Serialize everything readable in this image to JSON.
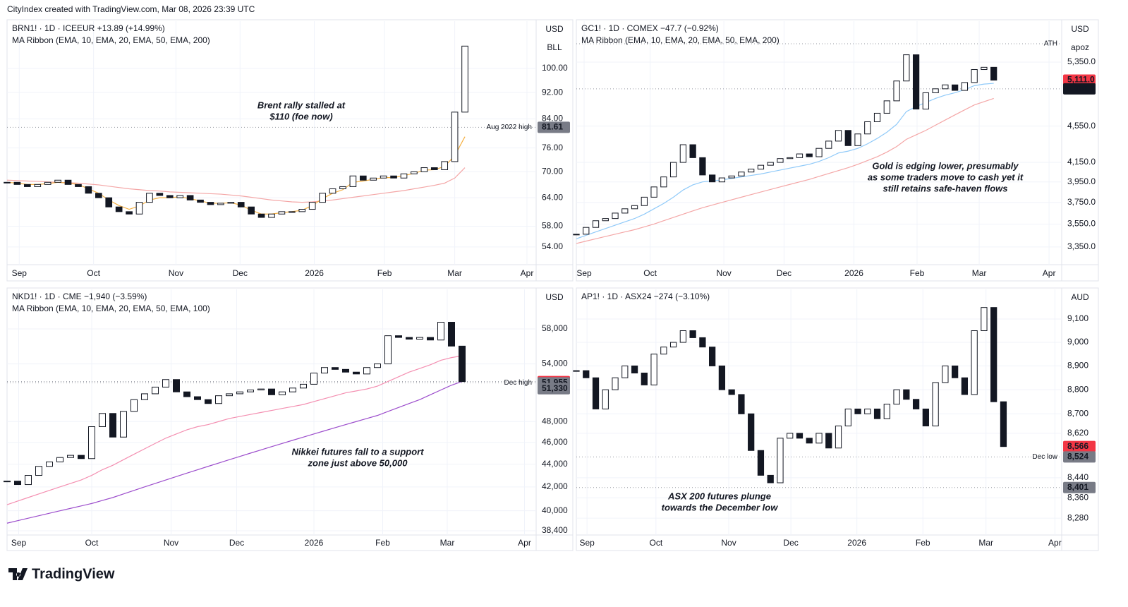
{
  "credit": "CityIndex created with TradingView.com, Mar 08, 2026 23:39 UTC",
  "brand": "TradingView",
  "chart_data": [
    {
      "type": "candlestick",
      "title": "BRN1! · 1D · ICEEUR  +13.89 (+14.99%)",
      "subtitle": "MA Ribbon (EMA, 10, EMA, 20, EMA, 50, EMA, 200)",
      "units": [
        "USD",
        "BLL"
      ],
      "annotation": [
        "Brent rally stalled at",
        "$110 (foe now)"
      ],
      "log_scale": true,
      "grid": true,
      "up_color": "#ffffff",
      "down_color": "#131722",
      "xlim": [
        0,
        52
      ],
      "xticks": [
        {
          "value": 1.2,
          "label": "Sep"
        },
        {
          "value": 8.5,
          "label": "Oct"
        },
        {
          "value": 16.6,
          "label": "Nov"
        },
        {
          "value": 22.9,
          "label": "Dec"
        },
        {
          "value": 30.2,
          "label": "2026"
        },
        {
          "value": 37.1,
          "label": "Feb"
        },
        {
          "value": 44,
          "label": "Mar"
        },
        {
          "value": 51.1,
          "label": "Apr"
        }
      ],
      "ylim": [
        50.8,
        117.7
      ],
      "yticks": [
        {
          "value": 54,
          "label": "54.00"
        },
        {
          "value": 58,
          "label": "58.00"
        },
        {
          "value": 64,
          "label": "64.00"
        },
        {
          "value": 70,
          "label": "70.00"
        },
        {
          "value": 76,
          "label": "76.00"
        },
        {
          "value": 84,
          "label": "84.00"
        },
        {
          "value": 92,
          "label": "92.00"
        },
        {
          "value": 100,
          "label": "100.00"
        }
      ],
      "values": [
        67.5,
        67,
        66.5,
        67,
        67.5,
        68,
        67,
        66.5,
        65,
        64,
        62,
        61,
        60.5,
        63,
        65,
        64.5,
        64,
        64.5,
        63.5,
        63,
        62.5,
        62.8,
        63,
        62,
        60.5,
        59.8,
        60.5,
        61,
        61,
        61.5,
        63,
        65,
        66,
        66.5,
        69,
        68,
        68.5,
        69,
        68.5,
        69.5,
        70,
        71,
        70.5,
        72.5,
        86,
        108
      ],
      "ribbon": [
        {
          "color": "#f4a6a6",
          "values": [
            68,
            67.9,
            67.8,
            67.7,
            67.6,
            67.5,
            67.4,
            67.3,
            67.1,
            66.9,
            66.6,
            66.3,
            66,
            65.8,
            65.6,
            65.5,
            65.3,
            65.2,
            65.1,
            65,
            64.9,
            64.8,
            64.6,
            64.4,
            64.1,
            63.8,
            63.5,
            63.3,
            63.1,
            63,
            63.1,
            63.3,
            63.5,
            63.8,
            64.1,
            64.4,
            64.7,
            65,
            65.3,
            65.6,
            66,
            66.4,
            66.8,
            67.3,
            68.5,
            71
          ]
        },
        {
          "color": "#f5b041",
          "values": [
            67.5,
            67.3,
            67,
            67,
            67.2,
            67.5,
            67.3,
            67,
            66,
            65,
            63.5,
            62.3,
            61.5,
            62.2,
            63.5,
            64,
            64,
            64.2,
            63.8,
            63.3,
            62.8,
            62.8,
            62.9,
            62.4,
            61.3,
            60.5,
            60.5,
            60.8,
            61,
            61.3,
            62.3,
            63.8,
            65,
            65.8,
            67.5,
            67.8,
            68.2,
            68.6,
            68.6,
            69.1,
            69.6,
            70.4,
            70.5,
            71.3,
            74,
            79
          ]
        }
      ],
      "levels": [
        {
          "value": 81.61,
          "label": "Aug 2022 high"
        }
      ],
      "price_labels": [
        {
          "value": 81.61,
          "label": "81.61",
          "color": "#787b86"
        }
      ]
    },
    {
      "type": "candlestick",
      "title": "GC1! · 1D · COMEX  −47.7 (−0.92%)",
      "subtitle": "MA Ribbon (EMA, 10, EMA, 20, EMA, 50, EMA, 200)",
      "units": [
        "USD",
        "apoz"
      ],
      "annotation": [
        "Gold is edging lower, presumably",
        "as some traders move to cash yet it",
        "still retains safe-haven flows"
      ],
      "log_scale": true,
      "grid": true,
      "up_color": "#ffffff",
      "down_color": "#131722",
      "xlim": [
        0,
        50
      ],
      "xticks": [
        {
          "value": 0.8,
          "label": "Sep"
        },
        {
          "value": 7.6,
          "label": "Oct"
        },
        {
          "value": 15.2,
          "label": "Nov"
        },
        {
          "value": 21.4,
          "label": "Dec"
        },
        {
          "value": 28.6,
          "label": "2026"
        },
        {
          "value": 35.1,
          "label": "Feb"
        },
        {
          "value": 41.5,
          "label": "Mar"
        },
        {
          "value": 48.7,
          "label": "Apr"
        }
      ],
      "ylim": [
        3203,
        5934
      ],
      "yticks": [
        {
          "value": 3350,
          "label": "3,350.0"
        },
        {
          "value": 3550,
          "label": "3,550.0"
        },
        {
          "value": 3750,
          "label": "3,750.0"
        },
        {
          "value": 3950,
          "label": "3,950.0"
        },
        {
          "value": 4150,
          "label": "4,150.0"
        },
        {
          "value": 4550,
          "label": "4,550.0"
        },
        {
          "value": 5350,
          "label": "5,350.0"
        }
      ],
      "values": [
        3460,
        3520,
        3580,
        3600,
        3650,
        3690,
        3720,
        3800,
        3900,
        4000,
        4150,
        4340,
        4200,
        4020,
        3950,
        3990,
        4010,
        4050,
        4080,
        4120,
        4150,
        4190,
        4200,
        4240,
        4210,
        4300,
        4380,
        4500,
        4330,
        4460,
        4600,
        4700,
        4850,
        5100,
        5450,
        4750,
        4950,
        5000,
        5050,
        4980,
        5080,
        5250,
        5280,
        5111
      ],
      "ribbon": [
        {
          "color": "#f4a6a6",
          "values": [
            3380,
            3400,
            3420,
            3440,
            3460,
            3480,
            3500,
            3525,
            3550,
            3580,
            3610,
            3640,
            3670,
            3700,
            3725,
            3750,
            3775,
            3800,
            3825,
            3850,
            3875,
            3900,
            3925,
            3950,
            3975,
            4005,
            4035,
            4065,
            4095,
            4130,
            4170,
            4210,
            4260,
            4320,
            4400,
            4450,
            4500,
            4560,
            4620,
            4680,
            4740,
            4800,
            4840,
            4880
          ]
        },
        {
          "color": "#90caf9",
          "values": [
            3420,
            3450,
            3480,
            3510,
            3540,
            3570,
            3600,
            3640,
            3690,
            3740,
            3800,
            3870,
            3920,
            3950,
            3960,
            3970,
            3985,
            4000,
            4015,
            4030,
            4050,
            4070,
            4090,
            4110,
            4130,
            4160,
            4200,
            4250,
            4270,
            4300,
            4350,
            4410,
            4480,
            4570,
            4720,
            4780,
            4830,
            4880,
            4920,
            4950,
            4990,
            5040,
            5060,
            5070
          ]
        }
      ],
      "levels": [
        {
          "value": 5604,
          "label": "ATH"
        },
        {
          "value": 5000
        }
      ],
      "price_labels": [
        {
          "value": 5111,
          "label": "5,111.0",
          "color": "#f23645"
        },
        {
          "value": 5000,
          "label": "5,000.0",
          "color": "#131722"
        }
      ]
    },
    {
      "type": "candlestick",
      "title": "NKD1! · 1D · CME  −1,940 (−3.59%)",
      "subtitle": "MA Ribbon (EMA, 10, EMA, 20, EMA, 50, EMA, 100)",
      "units": [
        "USD"
      ],
      "annotation": [
        "Nikkei futures fall to a support",
        "zone just above 50,000"
      ],
      "log_scale": true,
      "grid": true,
      "up_color": "#ffffff",
      "down_color": "#131722",
      "xlim": [
        0,
        50
      ],
      "xticks": [
        {
          "value": 1.1,
          "label": "Sep"
        },
        {
          "value": 8,
          "label": "Oct"
        },
        {
          "value": 15.5,
          "label": "Nov"
        },
        {
          "value": 21.7,
          "label": "Dec"
        },
        {
          "value": 29,
          "label": "2026"
        },
        {
          "value": 35.5,
          "label": "Feb"
        },
        {
          "value": 41.6,
          "label": "Mar"
        },
        {
          "value": 48.9,
          "label": "Apr"
        }
      ],
      "ylim": [
        38069,
        62879
      ],
      "yticks": [
        {
          "value": 38400,
          "label": "38,400"
        },
        {
          "value": 40000,
          "label": "40,000"
        },
        {
          "value": 42000,
          "label": "42,000"
        },
        {
          "value": 44000,
          "label": "44,000"
        },
        {
          "value": 46000,
          "label": "46,000"
        },
        {
          "value": 48000,
          "label": "48,000"
        },
        {
          "value": 54000,
          "label": "54,000"
        },
        {
          "value": 58000,
          "label": "58,000"
        }
      ],
      "values": [
        42500,
        42200,
        43000,
        43800,
        44200,
        44600,
        44800,
        44500,
        47500,
        48800,
        46500,
        49000,
        50200,
        50800,
        51500,
        52300,
        51000,
        50500,
        50200,
        49800,
        50600,
        50800,
        51000,
        51200,
        51300,
        50700,
        51000,
        51400,
        51800,
        53000,
        53600,
        53400,
        53100,
        52900,
        53600,
        54000,
        57200,
        57000,
        56800,
        57000,
        56700,
        58800,
        56000,
        52080
      ],
      "ribbon": [
        {
          "color": "#f48fb1",
          "values": [
            40500,
            40800,
            41100,
            41400,
            41700,
            42000,
            42300,
            42600,
            43000,
            43500,
            43900,
            44400,
            44900,
            45400,
            45900,
            46400,
            46800,
            47200,
            47500,
            47700,
            48000,
            48300,
            48500,
            48700,
            48900,
            49100,
            49300,
            49500,
            49700,
            50000,
            50300,
            50600,
            50900,
            51100,
            51300,
            51600,
            52100,
            52600,
            53100,
            53500,
            53900,
            54400,
            54700,
            54900
          ]
        },
        {
          "color": "#9c4dcc",
          "values": [
            39000,
            39200,
            39400,
            39600,
            39800,
            40000,
            40200,
            40400,
            40600,
            40850,
            41100,
            41400,
            41700,
            42000,
            42300,
            42600,
            42900,
            43200,
            43500,
            43800,
            44100,
            44400,
            44700,
            45000,
            45300,
            45600,
            45900,
            46200,
            46500,
            46800,
            47100,
            47400,
            47700,
            48000,
            48300,
            48600,
            49000,
            49400,
            49800,
            50200,
            50700,
            51200,
            51700,
            52100
          ]
        }
      ],
      "levels": [
        {
          "value": 51955,
          "label": "Dec high"
        },
        {
          "value": 52080
        }
      ],
      "price_labels": [
        {
          "value": 52080,
          "label": "52,080",
          "color": "#f23645"
        },
        {
          "value": 51955,
          "label": "51,955",
          "color": "#787b86"
        },
        {
          "value": 51330,
          "label": "51,330",
          "color": "#787b86"
        }
      ]
    },
    {
      "type": "candlestick",
      "title": "AP1! · 1D · ASX24  −274 (−3.10%)",
      "units": [
        "AUD"
      ],
      "annotation": [
        "ASX 200 futures plunge",
        "towards the December low"
      ],
      "log_scale": true,
      "grid": true,
      "up_color": "#ffffff",
      "down_color": "#131722",
      "xlim": [
        0,
        50
      ],
      "xticks": [
        {
          "value": 1.1,
          "label": "Sep"
        },
        {
          "value": 8.2,
          "label": "Oct"
        },
        {
          "value": 15.7,
          "label": "Nov"
        },
        {
          "value": 22.1,
          "label": "Dec"
        },
        {
          "value": 28.9,
          "label": "2026"
        },
        {
          "value": 35.7,
          "label": "Feb"
        },
        {
          "value": 42.2,
          "label": "Mar"
        },
        {
          "value": 49.3,
          "label": "Apr"
        }
      ],
      "ylim": [
        8214,
        9229
      ],
      "yticks": [
        {
          "value": 8280,
          "label": "8,280"
        },
        {
          "value": 8360,
          "label": "8,360"
        },
        {
          "value": 8440,
          "label": "8,440"
        },
        {
          "value": 8620,
          "label": "8,620"
        },
        {
          "value": 8700,
          "label": "8,700"
        },
        {
          "value": 8800,
          "label": "8,800"
        },
        {
          "value": 8900,
          "label": "8,900"
        },
        {
          "value": 9000,
          "label": "9,000"
        },
        {
          "value": 9100,
          "label": "9,100"
        }
      ],
      "values": [
        8880,
        8850,
        8720,
        8800,
        8850,
        8900,
        8870,
        8820,
        8950,
        8980,
        9000,
        9050,
        9020,
        8980,
        8900,
        8800,
        8780,
        8700,
        8550,
        8450,
        8420,
        8600,
        8620,
        8600,
        8580,
        8620,
        8560,
        8650,
        8720,
        8700,
        8720,
        8680,
        8740,
        8800,
        8760,
        8720,
        8650,
        8830,
        8900,
        8850,
        8780,
        9050,
        9150,
        8750,
        8566
      ],
      "levels": [
        {
          "value": 8524,
          "label": "Dec low"
        },
        {
          "value": 8401
        }
      ],
      "price_labels": [
        {
          "value": 8566,
          "label": "8,566",
          "color": "#f23645"
        },
        {
          "value": 8524,
          "label": "8,524",
          "color": "#787b86"
        },
        {
          "value": 8401,
          "label": "8,401",
          "color": "#787b86"
        }
      ]
    }
  ]
}
